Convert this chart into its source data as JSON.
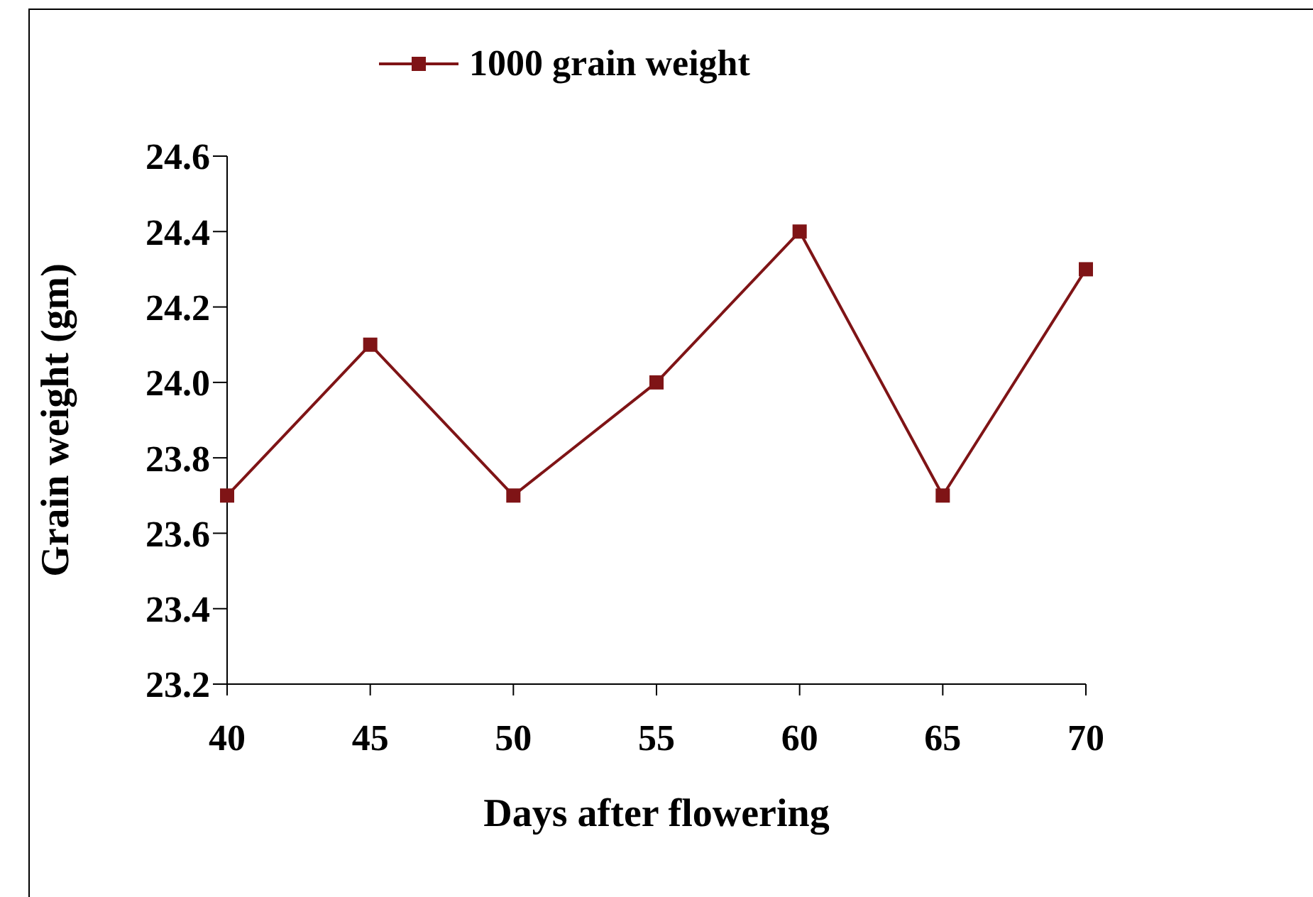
{
  "chart_data": {
    "type": "line",
    "xlabel": "Days after flowering",
    "ylabel": "Grain weight (gm)",
    "categories": [
      "40",
      "45",
      "50",
      "55",
      "60",
      "65",
      "70"
    ],
    "series": [
      {
        "name": "1000 grain weight",
        "color": "#7f1416",
        "values": [
          23.7,
          24.1,
          23.7,
          24.0,
          24.4,
          23.7,
          24.3
        ]
      }
    ],
    "ylim": [
      23.2,
      24.6
    ],
    "yticks": [
      23.2,
      23.4,
      23.6,
      23.8,
      {
        "value": 24,
        "label": "24.0"
      },
      24.2,
      24.4,
      24.6
    ],
    "marker": "square",
    "line_style": "solid",
    "grid": false,
    "legend": "top"
  }
}
